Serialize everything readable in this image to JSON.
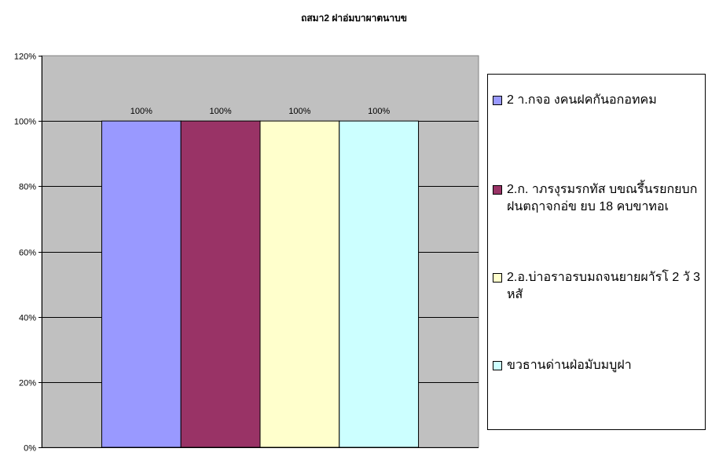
{
  "chart_data": {
    "type": "bar",
    "title": "ถสมา2 ฝาอ่มบาผาตนาบข",
    "categories": [
      ""
    ],
    "series": [
      {
        "name": "2 า.กจอ งคนฝคกันอกอทคม",
        "values": [
          1.0
        ],
        "color": "#9999FF"
      },
      {
        "name": "2.ก. าภรงุรมรกทัส บขณรึ้นรยกยบกฝนตฤาจกอ่ข ยบ 18 คบขาทอเ",
        "values": [
          1.0
        ],
        "color": "#993366"
      },
      {
        "name": "2.อ.บ่าอราอรบมถจนยายผาัรโ 2 วั 3 หสั",
        "values": [
          1.0
        ],
        "color": "#FFFFCC"
      },
      {
        "name": "ขวธานด่านฝ่อมับมบูฝา",
        "values": [
          1.0
        ],
        "color": "#CCFFFF"
      }
    ],
    "data_labels": [
      "100%",
      "100%",
      "100%",
      "100%"
    ],
    "yticks": [
      "0%",
      "20%",
      "40%",
      "60%",
      "80%",
      "100%",
      "120%"
    ],
    "ylim": [
      0,
      1.2
    ],
    "xlabel": "",
    "ylabel": "",
    "grid": true,
    "legend": "right",
    "plot_background": "#C0C0C0"
  }
}
